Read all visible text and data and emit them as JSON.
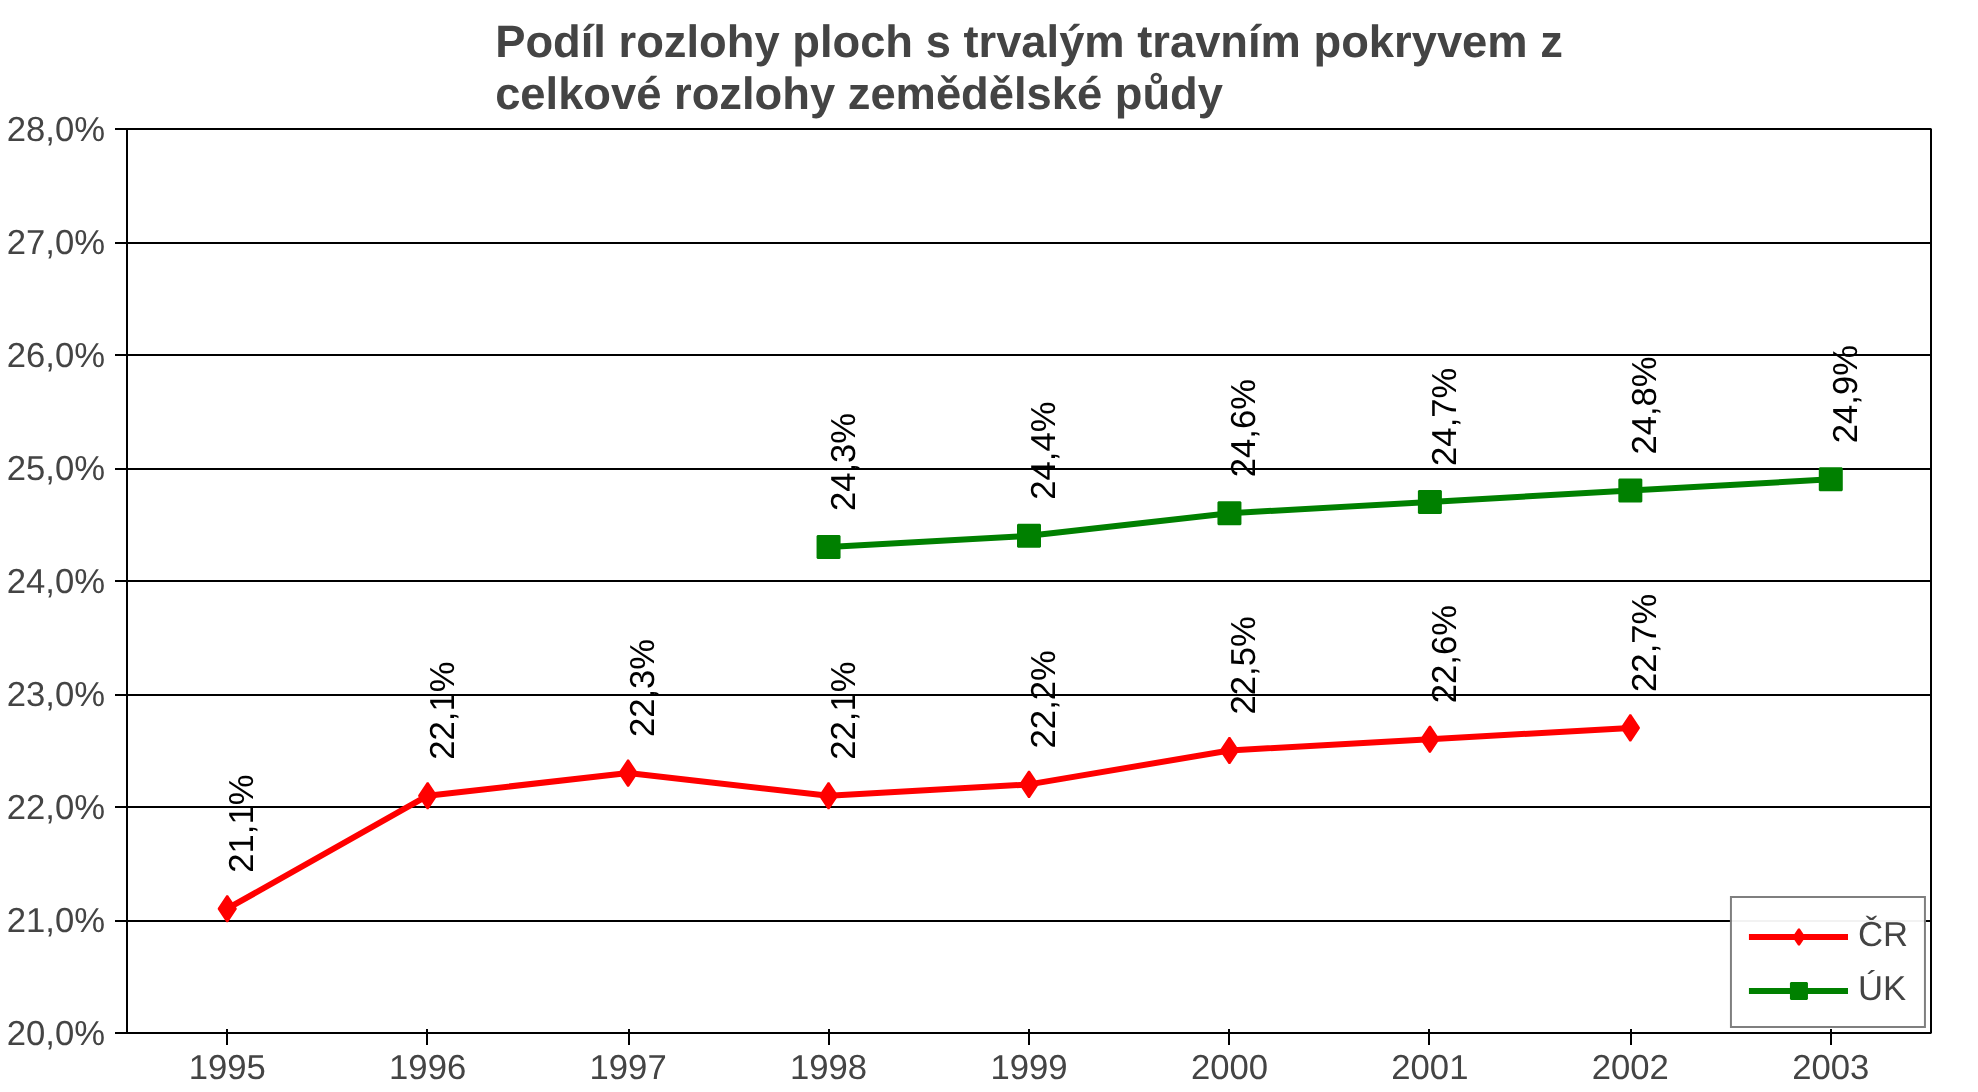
{
  "chart_data": {
    "type": "line",
    "title": "Podíl rozlohy ploch s trvalým travním pokryvem z\ncelkové rozlohy zemědělské půdy",
    "categories": [
      "1995",
      "1996",
      "1997",
      "1998",
      "1999",
      "2000",
      "2001",
      "2002",
      "2003"
    ],
    "series": [
      {
        "name": "ČR",
        "color": "#ff0000",
        "marker": "diamond",
        "values": [
          21.1,
          22.1,
          22.3,
          22.1,
          22.2,
          22.5,
          22.6,
          22.7,
          null
        ],
        "value_labels": [
          "21,1%",
          "22,1%",
          "22,3%",
          "22,1%",
          "22,2%",
          "22,5%",
          "22,6%",
          "22,7%",
          null
        ]
      },
      {
        "name": "ÚK",
        "color": "#008000",
        "marker": "square",
        "values": [
          null,
          null,
          null,
          24.3,
          24.4,
          24.6,
          24.7,
          24.8,
          24.9
        ],
        "value_labels": [
          null,
          null,
          null,
          "24,3%",
          "24,4%",
          "24,6%",
          "24,7%",
          "24,8%",
          "24,9%"
        ]
      }
    ],
    "ylim": [
      20,
      28
    ],
    "yticks": [
      {
        "value": 20,
        "label": "20,0%"
      },
      {
        "value": 21,
        "label": "21,0%"
      },
      {
        "value": 22,
        "label": "22,0%"
      },
      {
        "value": 23,
        "label": "23,0%"
      },
      {
        "value": 24,
        "label": "24,0%"
      },
      {
        "value": 25,
        "label": "25,0%"
      },
      {
        "value": 26,
        "label": "26,0%"
      },
      {
        "value": 27,
        "label": "27,0%"
      },
      {
        "value": 28,
        "label": "28,0%"
      }
    ],
    "grid": "y",
    "legend": "bottom right",
    "line_style": "solid"
  }
}
